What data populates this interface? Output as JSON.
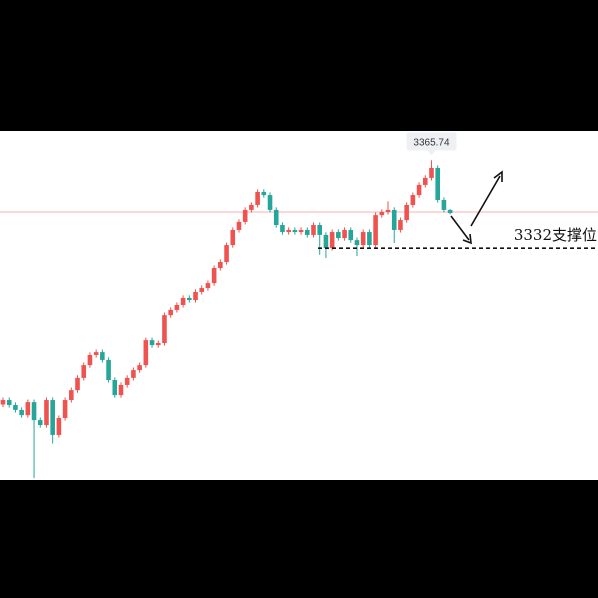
{
  "chart_data": {
    "type": "candlestick",
    "ylim": [
      3243,
      3377
    ],
    "up_color": "#ef5350",
    "down_color": "#26a69a",
    "price_line": 3345.9,
    "price_line_color": "#f7b3b3",
    "high_label": 3365.74,
    "support": {
      "value": 3332,
      "label": "3332支撑位"
    },
    "open": [
      3272.0,
      3273.7,
      3271.8,
      3269.9,
      3267.9,
      3272.9,
      3266.0,
      3264.1,
      3273.7,
      3260.3,
      3266.8,
      3273.7,
      3277.5,
      3282.2,
      3287.1,
      3291.0,
      3292.1,
      3289.1,
      3281.4,
      3275.6,
      3279.5,
      3282.2,
      3285.2,
      3287.1,
      3296.7,
      3294.8,
      3295.6,
      3306.3,
      3308.3,
      3310.2,
      3312.9,
      3312.1,
      3315.2,
      3316.7,
      3318.6,
      3324.4,
      3326.7,
      3333.2,
      3339.0,
      3342.1,
      3346.7,
      3348.6,
      3353.6,
      3352.4,
      3346.7,
      3340.9,
      3338.2,
      3339.0,
      3338.2,
      3339.0,
      3337.1,
      3340.9,
      3337.1,
      3332.1,
      3338.2,
      3335.9,
      3339.0,
      3335.1,
      3333.2,
      3338.2,
      3333.2,
      3344.7,
      3345.9,
      3346.7,
      3339.0,
      3342.8,
      3348.6,
      3352.4,
      3356.3,
      3359.0,
      3362.8,
      3350.5,
      3346.7
    ],
    "high": [
      3274.7,
      3274.7,
      3272.8,
      3270.9,
      3273.9,
      3273.9,
      3267.0,
      3274.7,
      3274.7,
      3267.8,
      3274.7,
      3278.5,
      3283.2,
      3288.1,
      3292.0,
      3293.1,
      3293.1,
      3290.1,
      3282.4,
      3280.5,
      3283.2,
      3286.2,
      3288.1,
      3297.7,
      3297.7,
      3296.6,
      3307.3,
      3309.3,
      3311.2,
      3313.9,
      3313.9,
      3316.2,
      3317.7,
      3319.6,
      3325.4,
      3327.7,
      3334.2,
      3340.0,
      3343.1,
      3347.7,
      3349.6,
      3354.6,
      3354.6,
      3353.4,
      3347.7,
      3341.9,
      3340.0,
      3340.0,
      3340.0,
      3340.0,
      3341.9,
      3341.9,
      3338.1,
      3339.2,
      3339.2,
      3340.0,
      3340.0,
      3336.1,
      3339.2,
      3339.2,
      3345.7,
      3346.9,
      3350.0,
      3347.7,
      3343.8,
      3349.6,
      3353.4,
      3357.3,
      3360.0,
      3365.74,
      3363.8,
      3351.5,
      3347.0
    ],
    "low": [
      3271.0,
      3270.8,
      3268.9,
      3266.9,
      3266.9,
      3243.7,
      3263.1,
      3263.1,
      3257.0,
      3259.3,
      3265.8,
      3272.7,
      3276.5,
      3281.2,
      3286.1,
      3290.0,
      3288.1,
      3280.4,
      3274.6,
      3274.6,
      3278.5,
      3281.2,
      3284.2,
      3286.1,
      3293.8,
      3293.8,
      3294.6,
      3305.3,
      3307.3,
      3309.2,
      3311.1,
      3311.1,
      3314.2,
      3315.7,
      3317.6,
      3323.4,
      3325.7,
      3332.2,
      3338.0,
      3341.1,
      3345.7,
      3347.6,
      3351.4,
      3345.7,
      3339.9,
      3337.2,
      3337.2,
      3337.2,
      3337.2,
      3336.1,
      3336.1,
      3329.5,
      3328.2,
      3331.1,
      3334.9,
      3334.9,
      3334.1,
      3329.0,
      3332.2,
      3332.2,
      3332.2,
      3343.7,
      3344.9,
      3334.0,
      3338.0,
      3341.8,
      3347.6,
      3351.4,
      3355.3,
      3358.0,
      3349.5,
      3345.7,
      3345.0
    ],
    "close": [
      3273.7,
      3271.8,
      3269.9,
      3267.9,
      3272.9,
      3266.0,
      3264.1,
      3273.7,
      3260.3,
      3266.8,
      3273.7,
      3277.5,
      3282.2,
      3287.1,
      3291.0,
      3292.1,
      3289.1,
      3281.4,
      3275.6,
      3279.5,
      3282.2,
      3285.2,
      3287.1,
      3296.7,
      3294.8,
      3295.6,
      3306.3,
      3308.3,
      3310.2,
      3312.9,
      3312.1,
      3315.2,
      3316.7,
      3318.6,
      3324.4,
      3326.7,
      3333.2,
      3339.0,
      3342.1,
      3346.7,
      3348.6,
      3353.6,
      3352.4,
      3346.7,
      3340.9,
      3338.2,
      3339.0,
      3338.2,
      3339.0,
      3337.1,
      3340.9,
      3337.1,
      3332.1,
      3338.2,
      3335.9,
      3339.0,
      3335.1,
      3333.2,
      3338.2,
      3333.2,
      3344.7,
      3345.9,
      3346.7,
      3339.0,
      3342.8,
      3348.6,
      3352.4,
      3356.3,
      3359.0,
      3362.8,
      3350.5,
      3346.7,
      3345.5
    ]
  }
}
